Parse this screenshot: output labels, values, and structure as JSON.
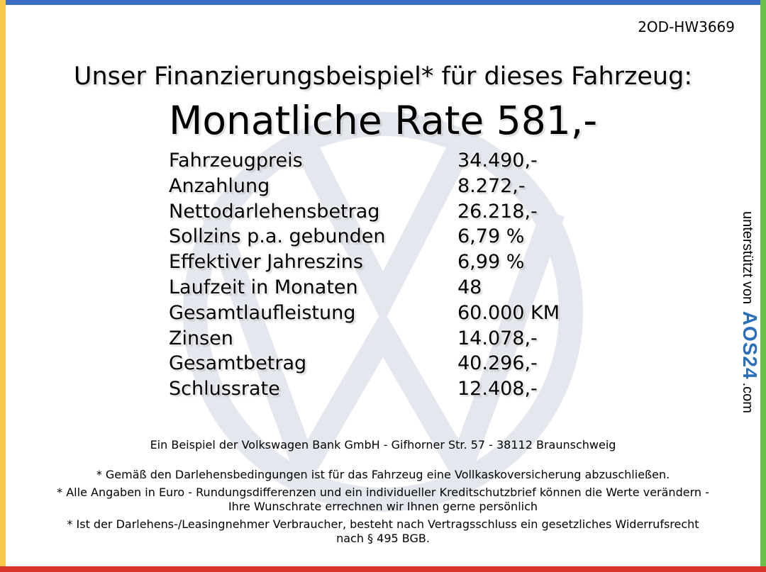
{
  "code": "2OD-HW3669",
  "heading": "Unser Finanzierungsbeispiel* für dieses Fahrzeug:",
  "rate": "Monatliche Rate 581,-",
  "table": {
    "rows": [
      [
        "Fahrzeugpreis",
        "34.490,-"
      ],
      [
        "Anzahlung",
        "8.272,-"
      ],
      [
        "Nettodarlehensbetrag",
        "26.218,-"
      ],
      [
        "Sollzins p.a. gebunden",
        "6,79 %"
      ],
      [
        "Effektiver Jahreszins",
        "6,99 %"
      ],
      [
        "Laufzeit in Monaten",
        "48"
      ],
      [
        "Gesamtlaufleistung",
        "60.000 KM"
      ],
      [
        "Zinsen",
        "14.078,-"
      ],
      [
        "Gesamtbetrag",
        "40.296,-"
      ],
      [
        "Schlussrate",
        "12.408,-"
      ]
    ]
  },
  "bank": "Ein Beispiel der Volkswagen Bank GmbH - Gifhorner Str. 57 - 38112 Braunschweig",
  "notes": [
    "* Gemäß den Darlehensbedingungen ist für das Fahrzeug eine Vollkaskoversicherung abzuschließen.",
    "* Alle Angaben in Euro - Rundungsdifferenzen und ein individueller Kreditschutzbrief können die Werte verändern - Ihre Wunschrate errechnen wir Ihnen gerne persönlich",
    "* Ist der Darlehens-/Leasingnehmer Verbraucher, besteht nach Vertragsschluss ein gesetzliches Widerrufsrecht nach § 495 BGB."
  ],
  "sidebar": {
    "prefix": "unterstützt von",
    "brand": "AOS24",
    "suffix": ".com"
  }
}
